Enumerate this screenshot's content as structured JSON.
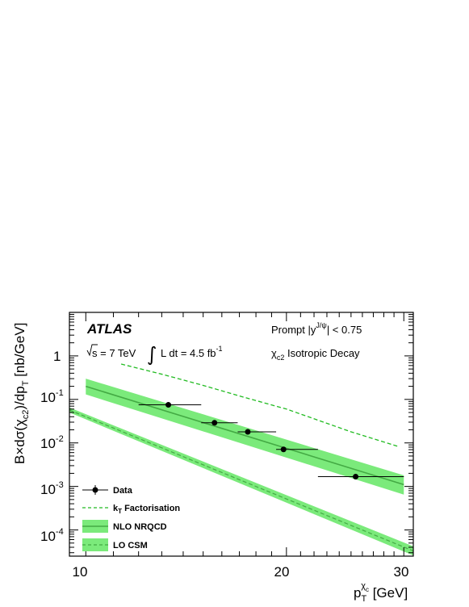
{
  "chart_data": {
    "type": "line",
    "title": "",
    "xlabel": {
      "main": "p",
      "sub": "T",
      "sup": "χ",
      "supsub": "c",
      "unit": " [GeV]"
    },
    "ylabel": {
      "pre": "B×dσ(χ",
      "sub1": "c2",
      "mid": ")/dp",
      "sub2": "T",
      "post": " [nb/GeV]"
    },
    "xscale": "log",
    "yscale": "log",
    "xlim": [
      9.45,
      31
    ],
    "ylim": [
      2.5e-05,
      10
    ],
    "x_ticks": [
      {
        "value": 10,
        "label": "10"
      },
      {
        "value": 20,
        "label": "20"
      },
      {
        "value": 30,
        "label": "30"
      }
    ],
    "y_ticks": [
      {
        "value": 0.0001,
        "base": "10",
        "exp": "-4"
      },
      {
        "value": 0.001,
        "base": "10",
        "exp": "-3"
      },
      {
        "value": 0.01,
        "base": "10",
        "exp": "-2"
      },
      {
        "value": 0.1,
        "base": "10",
        "exp": "-1"
      },
      {
        "value": 1,
        "base": "1",
        "exp": ""
      }
    ],
    "annotations": {
      "experiment": "ATLAS",
      "energy": "s = 7 TeV",
      "lumi_pre": "L dt = 4.5 fb",
      "lumi_exp": "-1",
      "selection_pre": "Prompt  |y",
      "selection_sup": "J/ψ",
      "selection_post": "| < 0.75",
      "decay_pre": "χ",
      "decay_sub": "c2",
      "decay_post": " Isotropic Decay"
    },
    "legend_position": "bottom-left",
    "series": [
      {
        "name": "Data",
        "style": "markers",
        "color": "#000000",
        "points": [
          {
            "x": 13.3,
            "y": 0.075,
            "xlo": 12.0,
            "xhi": 14.9
          },
          {
            "x": 15.6,
            "y": 0.029,
            "xlo": 14.9,
            "xhi": 16.9
          },
          {
            "x": 17.5,
            "y": 0.018,
            "xlo": 16.9,
            "xhi": 19.3
          },
          {
            "x": 19.8,
            "y": 0.0071,
            "xlo": 19.3,
            "xhi": 22.3
          },
          {
            "x": 25.4,
            "y": 0.00168,
            "xlo": 22.3,
            "xhi": 30.0
          }
        ]
      },
      {
        "name": "k",
        "name_sub": "T",
        "name_post": " Factorisation",
        "style": "dashed-line",
        "color": "#22bb22",
        "x": [
          11.3,
          13,
          15,
          17,
          20,
          25,
          29.5
        ],
        "y": [
          0.65,
          0.38,
          0.21,
          0.12,
          0.06,
          0.018,
          0.0082
        ]
      },
      {
        "name": "NLO NRQCD",
        "style": "line-band",
        "color": "#44aa44",
        "band_color": "#7bea7b",
        "x": [
          10,
          30
        ],
        "y": [
          0.2,
          0.0011
        ],
        "band_lo": [
          0.13,
          0.00065
        ],
        "band_hi": [
          0.3,
          0.0018
        ]
      },
      {
        "name": "LO CSM",
        "style": "dashed-band",
        "color": "#44aa44",
        "band_color": "#7bea7b",
        "x": [
          9.45,
          31
        ],
        "y": [
          0.057,
          3.3e-05
        ],
        "band_lo": [
          0.05,
          2.6e-05
        ],
        "band_hi": [
          0.065,
          4.2e-05
        ]
      }
    ]
  }
}
